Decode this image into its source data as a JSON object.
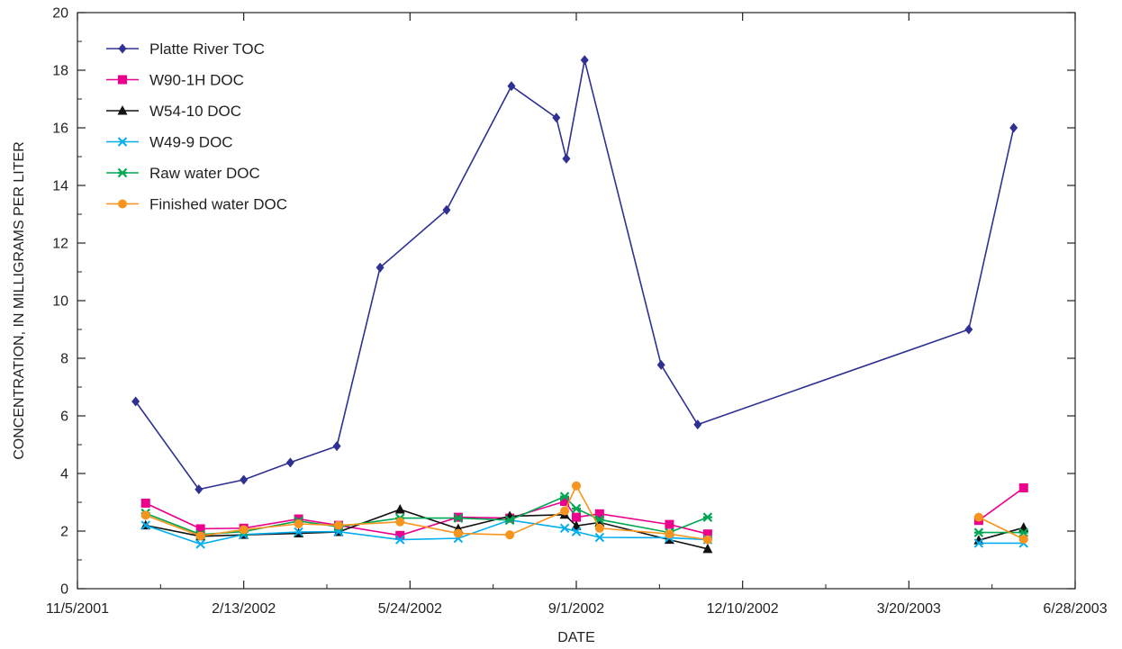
{
  "chart_data": {
    "type": "line",
    "title": "",
    "xlabel": "DATE",
    "ylabel": "CONCENTRATION, IN MILLIGRAMS PER LITER",
    "xlim": [
      "2001-11-05",
      "2003-06-28"
    ],
    "ylim": [
      0,
      20
    ],
    "x_ticks": [
      "2001-11-05",
      "2002-02-13",
      "2002-05-24",
      "2002-09-01",
      "2002-12-10",
      "2003-03-20",
      "2003-06-28"
    ],
    "x_tick_labels": [
      "11/5/2001",
      "2/13/2002",
      "5/24/2002",
      "9/1/2002",
      "12/10/2002",
      "3/20/2003",
      "6/28/2003"
    ],
    "y_ticks": [
      0,
      2,
      4,
      6,
      8,
      10,
      12,
      14,
      16,
      18,
      20
    ],
    "y_tick_labels": [
      "0",
      "2",
      "4",
      "6",
      "8",
      "10",
      "12",
      "14",
      "16",
      "18",
      "20"
    ],
    "grid": false,
    "legend_position": "top-left",
    "series": [
      {
        "name": "Platte River TOC",
        "color": "#2e3192",
        "marker": "diamond",
        "points": [
          [
            "2001-12-10",
            6.5
          ],
          [
            "2002-01-17",
            3.45
          ],
          [
            "2002-02-13",
            3.78
          ],
          [
            "2002-03-13",
            4.38
          ],
          [
            "2002-04-10",
            4.95
          ],
          [
            "2002-05-06",
            11.15
          ],
          [
            "2002-06-15",
            13.15
          ],
          [
            "2002-07-24",
            17.45
          ],
          [
            "2002-08-20",
            16.35
          ],
          [
            "2002-08-26",
            14.93
          ],
          [
            "2002-09-06",
            18.35
          ],
          [
            "2002-10-22",
            7.77
          ],
          [
            "2002-11-13",
            5.7
          ],
          [
            "2003-04-25",
            9.0
          ],
          [
            "2003-05-22",
            16.0
          ]
        ]
      },
      {
        "name": "W90-1H DOC",
        "color": "#ec008c",
        "marker": "square",
        "points": [
          [
            "2001-12-16",
            2.97
          ],
          [
            "2002-01-18",
            2.08
          ],
          [
            "2002-02-13",
            2.1
          ],
          [
            "2002-03-18",
            2.42
          ],
          [
            "2002-04-11",
            2.2
          ],
          [
            "2002-05-18",
            1.85
          ],
          [
            "2002-06-22",
            2.48
          ],
          [
            "2002-07-23",
            2.45
          ],
          [
            "2002-08-25",
            3.03
          ],
          [
            "2002-09-01",
            2.48
          ],
          [
            "2002-09-15",
            2.6
          ],
          [
            "2002-10-27",
            2.23
          ],
          [
            "2002-11-19",
            1.9
          ],
          [
            "null-gap",
            null
          ],
          [
            "2003-05-01",
            2.37
          ],
          [
            "2003-05-28",
            3.5
          ]
        ]
      },
      {
        "name": "W54-10 DOC",
        "color": "#111111",
        "marker": "triangle",
        "points": [
          [
            "2001-12-16",
            2.2
          ],
          [
            "2002-01-18",
            1.82
          ],
          [
            "2002-02-13",
            1.87
          ],
          [
            "2002-03-18",
            1.92
          ],
          [
            "2002-04-11",
            1.97
          ],
          [
            "2002-05-18",
            2.75
          ],
          [
            "2002-06-22",
            2.08
          ],
          [
            "2002-07-23",
            2.52
          ],
          [
            "2002-08-25",
            2.57
          ],
          [
            "2002-09-01",
            2.18
          ],
          [
            "2002-09-15",
            2.3
          ],
          [
            "2002-10-27",
            1.7
          ],
          [
            "2002-11-19",
            1.38
          ],
          [
            "null-gap",
            null
          ],
          [
            "2003-05-01",
            1.68
          ],
          [
            "2003-05-28",
            2.12
          ]
        ]
      },
      {
        "name": "W49-9 DOC",
        "color": "#00aeef",
        "marker": "x",
        "points": [
          [
            "2001-12-16",
            2.2
          ],
          [
            "2002-01-18",
            1.55
          ],
          [
            "2002-02-13",
            1.88
          ],
          [
            "2002-03-18",
            1.97
          ],
          [
            "2002-04-11",
            1.98
          ],
          [
            "2002-05-18",
            1.7
          ],
          [
            "2002-06-22",
            1.75
          ],
          [
            "2002-07-23",
            2.38
          ],
          [
            "2002-08-25",
            2.1
          ],
          [
            "2002-09-01",
            1.98
          ],
          [
            "2002-09-15",
            1.78
          ],
          [
            "2002-10-27",
            1.77
          ],
          [
            "2002-11-19",
            1.7
          ],
          [
            "null-gap",
            null
          ],
          [
            "2003-05-01",
            1.58
          ],
          [
            "2003-05-28",
            1.58
          ]
        ]
      },
      {
        "name": "Raw water DOC",
        "color": "#00a651",
        "marker": "asterisk",
        "points": [
          [
            "2001-12-16",
            2.62
          ],
          [
            "2002-01-18",
            1.88
          ],
          [
            "2002-02-13",
            1.98
          ],
          [
            "2002-03-18",
            2.35
          ],
          [
            "2002-04-11",
            2.15
          ],
          [
            "2002-05-18",
            2.45
          ],
          [
            "2002-06-22",
            2.45
          ],
          [
            "2002-07-23",
            2.38
          ],
          [
            "2002-08-25",
            3.2
          ],
          [
            "2002-09-01",
            2.78
          ],
          [
            "2002-09-15",
            2.4
          ],
          [
            "2002-10-27",
            1.95
          ],
          [
            "2002-11-19",
            2.48
          ],
          [
            "null-gap",
            null
          ],
          [
            "2003-05-01",
            1.95
          ],
          [
            "2003-05-28",
            1.95
          ]
        ]
      },
      {
        "name": "Finished water DOC",
        "color": "#f7941d",
        "marker": "circle",
        "points": [
          [
            "2001-12-16",
            2.55
          ],
          [
            "2002-01-18",
            1.83
          ],
          [
            "2002-02-13",
            2.05
          ],
          [
            "2002-03-18",
            2.25
          ],
          [
            "2002-04-11",
            2.2
          ],
          [
            "2002-05-18",
            2.32
          ],
          [
            "2002-06-22",
            1.92
          ],
          [
            "2002-07-23",
            1.87
          ],
          [
            "2002-08-25",
            2.7
          ],
          [
            "2002-09-01",
            3.57
          ],
          [
            "2002-09-15",
            2.1
          ],
          [
            "2002-10-27",
            1.9
          ],
          [
            "2002-11-19",
            1.7
          ],
          [
            "null-gap",
            null
          ],
          [
            "2003-05-01",
            2.48
          ],
          [
            "2003-05-28",
            1.72
          ]
        ]
      }
    ]
  }
}
